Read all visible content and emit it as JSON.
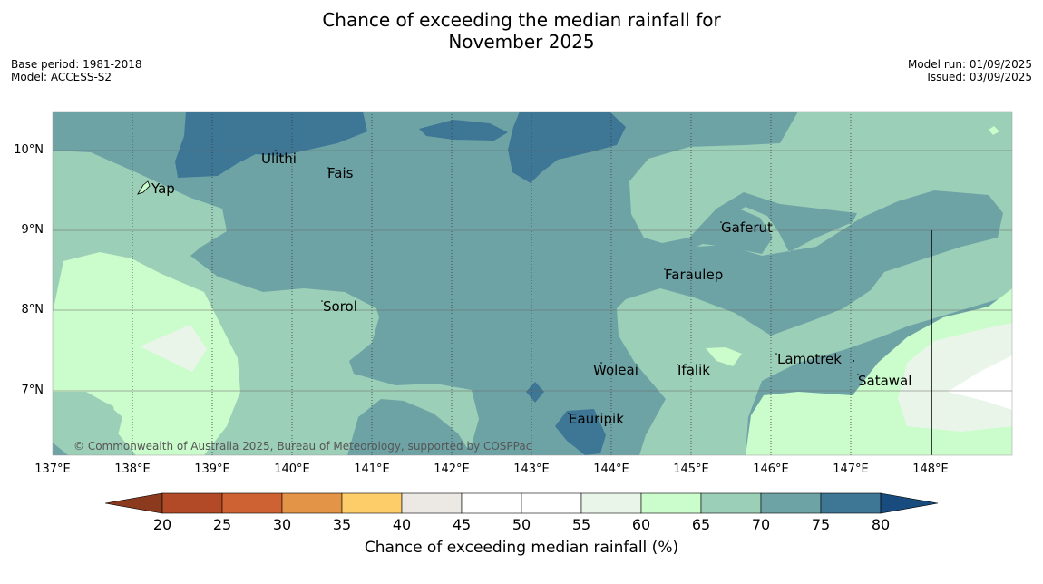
{
  "title": {
    "line1": "Chance of exceeding the median rainfall for",
    "line2": "November 2025"
  },
  "meta_left": {
    "base_period": "Base period: 1981-2018",
    "model": "Model: ACCESS-S2"
  },
  "meta_right": {
    "model_run": "Model run: 01/09/2025",
    "issued": "Issued: 03/09/2025"
  },
  "latitude_labels": [
    "10°N",
    "9°N",
    "8°N",
    "7°N"
  ],
  "longitude_labels": [
    "137°E",
    "138°E",
    "139°E",
    "140°E",
    "141°E",
    "142°E",
    "143°E",
    "144°E",
    "145°E",
    "146°E",
    "147°E",
    "148°E"
  ],
  "places": {
    "ulithi": "Ulithi",
    "yap": "Yap",
    "fais": "Fais",
    "gaferut": "Gaferut",
    "faraulep": "Faraulep",
    "sorol": "Sorol",
    "woleai": "Woleai",
    "ifalik": "Ifalik",
    "lamotrek": "Lamotrek",
    "satawal": "Satawal",
    "eauripik": "Eauripik"
  },
  "copyright": "© Commonwealth of Australia 2025, Bureau of Meteorology, supported by COSPPac",
  "colorbar": {
    "label": "Chance of exceeding median rainfall (%)",
    "ticks": [
      "20",
      "25",
      "30",
      "35",
      "40",
      "45",
      "50",
      "55",
      "60",
      "65",
      "70",
      "75",
      "80"
    ],
    "colors": {
      "lt20": "#8c3a1d",
      "c20_25": "#b24a27",
      "c25_30": "#cf6233",
      "c30_35": "#e39446",
      "c35_40": "#fdcd6a",
      "c40_45": "#ece9e4",
      "c45_50": "#ffffff",
      "c50_55": "#ffffff",
      "c55_60": "#eaf5ea",
      "c60_65": "#cbfccb",
      "c65_70": "#9ccfb7",
      "c70_75": "#6ea3a6",
      "c75_80": "#3e7696",
      "gt80": "#184b7e"
    }
  }
}
